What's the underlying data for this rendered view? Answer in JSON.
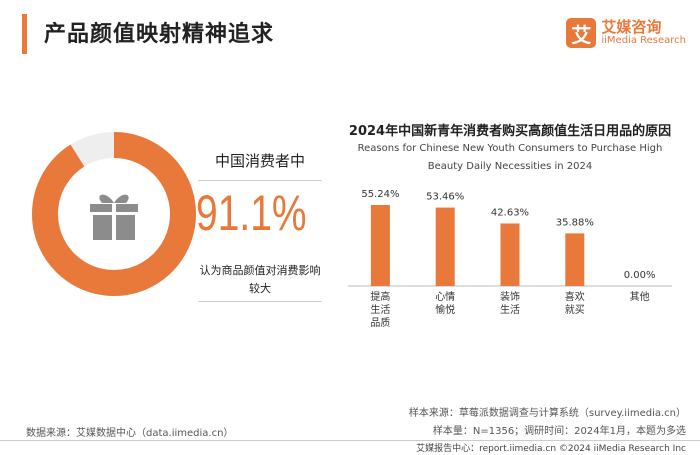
{
  "header": {
    "title": "产品颜值映射精神追求",
    "logo_mark": "艾",
    "logo_cn": "艾媒咨询",
    "logo_en": "iiMedia Research"
  },
  "stat": {
    "title": "中国消费者中",
    "percent": "91.1%",
    "value": 0.911,
    "caption": "认为商品颜值对消费影响较大",
    "icon": "gift-icon"
  },
  "colors": {
    "accent": "#e8793a",
    "donut_rest": "#eeeeee",
    "icon": "#8c8c8c"
  },
  "chart_data": {
    "type": "bar",
    "title": "2024年中国新青年消费者购买高颜值生活日用品的原因",
    "subtitle": "Reasons for Chinese New Youth Consumers to Purchase High Beauty Daily Necessities in 2024",
    "categories": [
      "提高生活品质",
      "心情愉悦",
      "装饰生活",
      "喜欢就买",
      "其他"
    ],
    "category_lines": [
      [
        "提高",
        "生活",
        "品质"
      ],
      [
        "心情",
        "愉悦"
      ],
      [
        "装饰",
        "生活"
      ],
      [
        "喜欢",
        "就买"
      ],
      [
        "其他"
      ]
    ],
    "values": [
      55.24,
      53.46,
      42.63,
      35.88,
      0.0
    ],
    "value_labels": [
      "55.24%",
      "53.46%",
      "42.63%",
      "35.88%",
      "0.00%"
    ],
    "ylim": [
      0,
      60
    ],
    "color": "#e8793a"
  },
  "footer": {
    "source_left": "数据来源：艾媒数据中心（data.iimedia.cn）",
    "source_right_1": "样本来源：草莓派数据调查与计算系统（survey.iimedia.cn）",
    "source_right_2": "样本量：N=1356；调研时间：2024年1月，本题为多选",
    "report": "艾媒报告中心：report.iimedia.cn    ©2024  iiMedia Research  Inc"
  }
}
